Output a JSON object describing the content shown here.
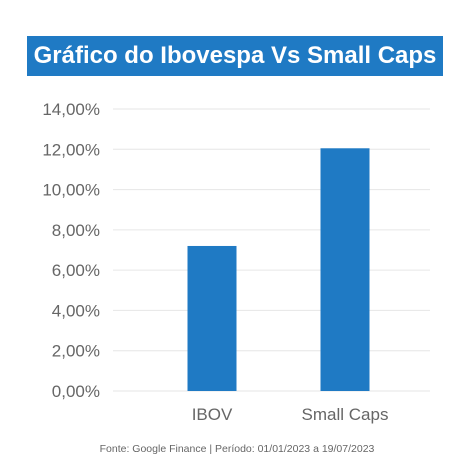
{
  "chart_data": {
    "type": "bar",
    "title": "Gráfico do Ibovespa Vs Small Caps",
    "categories": [
      "IBOV",
      "Small Caps"
    ],
    "values": [
      7.2,
      12.05
    ],
    "ylim": [
      0,
      14
    ],
    "ytick_values": [
      0,
      2,
      4,
      6,
      8,
      10,
      12,
      14
    ],
    "ytick_labels": [
      "0,00%",
      "2,00%",
      "4,00%",
      "6,00%",
      "8,00%",
      "10,00%",
      "12,00%",
      "14,00%"
    ],
    "grid": true,
    "bar_color": "#1f7ac4"
  },
  "source_note": "Fonte: Google Finance | Período: 01/01/2023 a 19/07/2023"
}
